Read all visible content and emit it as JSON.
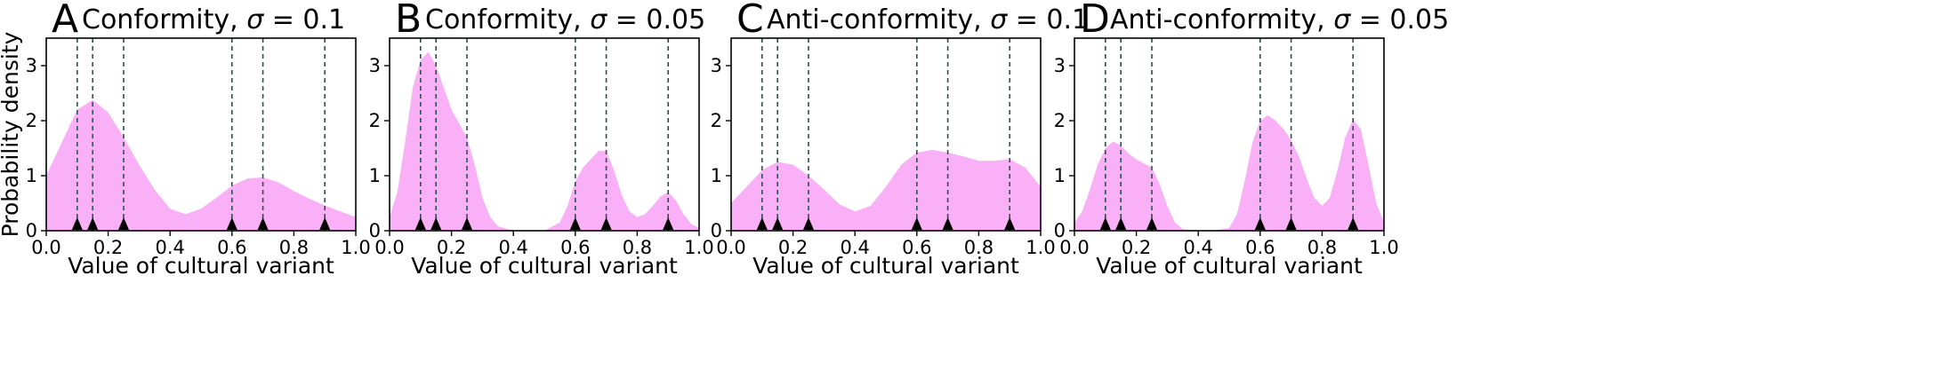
{
  "figure": {
    "ylabel": "Probability density",
    "xlabel": "Value of cultural variant"
  },
  "style": {
    "fill_color": "#f9b0f7",
    "line_color": "#2f4f4f",
    "marker_color": "#000000"
  },
  "chart_data": [
    {
      "type": "area",
      "letter": "A",
      "title_text": "Conformity, ",
      "sigma_text": "σ = 0.1",
      "xlabel": "Value of cultural variant",
      "ylabel": "Probability density",
      "xlim": [
        0,
        1
      ],
      "ylim": [
        0,
        3.5
      ],
      "xticks": [
        "0.0",
        "0.2",
        "0.4",
        "0.6",
        "0.8",
        "1.0"
      ],
      "yticks": [
        "0",
        "1",
        "2",
        "3"
      ],
      "markers": [
        0.1,
        0.15,
        0.25,
        0.6,
        0.7,
        0.9
      ],
      "x": [
        0.0,
        0.05,
        0.1,
        0.15,
        0.2,
        0.25,
        0.3,
        0.35,
        0.4,
        0.45,
        0.5,
        0.55,
        0.6,
        0.65,
        0.7,
        0.75,
        0.8,
        0.85,
        0.9,
        0.95,
        1.0
      ],
      "density": [
        1.0,
        1.6,
        2.2,
        2.38,
        2.15,
        1.7,
        1.2,
        0.75,
        0.4,
        0.3,
        0.4,
        0.6,
        0.82,
        0.95,
        0.97,
        0.88,
        0.72,
        0.58,
        0.46,
        0.35,
        0.25
      ]
    },
    {
      "type": "area",
      "letter": "B",
      "title_text": "Conformity, ",
      "sigma_text": "σ = 0.05",
      "xlabel": "Value of cultural variant",
      "ylabel": "",
      "xlim": [
        0,
        1
      ],
      "ylim": [
        0,
        3.5
      ],
      "xticks": [
        "0.0",
        "0.2",
        "0.4",
        "0.6",
        "0.8",
        "1.0"
      ],
      "yticks": [
        "0",
        "1",
        "2",
        "3"
      ],
      "markers": [
        0.1,
        0.15,
        0.25,
        0.6,
        0.7,
        0.9
      ],
      "x": [
        0.0,
        0.025,
        0.05,
        0.075,
        0.1,
        0.125,
        0.15,
        0.175,
        0.2,
        0.225,
        0.25,
        0.275,
        0.3,
        0.325,
        0.35,
        0.4,
        0.45,
        0.5,
        0.55,
        0.575,
        0.6,
        0.625,
        0.65,
        0.675,
        0.7,
        0.725,
        0.75,
        0.775,
        0.8,
        0.825,
        0.85,
        0.875,
        0.9,
        0.925,
        0.95,
        0.975,
        1.0
      ],
      "density": [
        0.25,
        0.7,
        1.6,
        2.6,
        3.1,
        3.25,
        3.0,
        2.6,
        2.2,
        1.95,
        1.7,
        1.2,
        0.6,
        0.25,
        0.08,
        0.0,
        0.0,
        0.0,
        0.15,
        0.45,
        0.9,
        1.15,
        1.3,
        1.45,
        1.45,
        1.1,
        0.65,
        0.35,
        0.25,
        0.3,
        0.45,
        0.62,
        0.7,
        0.55,
        0.3,
        0.12,
        0.05
      ]
    },
    {
      "type": "area",
      "letter": "C",
      "title_text": "Anti-conformity, ",
      "sigma_text": "σ = 0.1",
      "xlabel": "Value of cultural variant",
      "ylabel": "",
      "xlim": [
        0,
        1
      ],
      "ylim": [
        0,
        3.5
      ],
      "xticks": [
        "0.0",
        "0.2",
        "0.4",
        "0.6",
        "0.8",
        "1.0"
      ],
      "yticks": [
        "0",
        "1",
        "2",
        "3"
      ],
      "markers": [
        0.1,
        0.15,
        0.25,
        0.6,
        0.7,
        0.9
      ],
      "x": [
        0.0,
        0.05,
        0.1,
        0.15,
        0.2,
        0.25,
        0.3,
        0.35,
        0.4,
        0.45,
        0.5,
        0.55,
        0.6,
        0.65,
        0.7,
        0.75,
        0.8,
        0.85,
        0.9,
        0.95,
        1.0
      ],
      "density": [
        0.5,
        0.8,
        1.1,
        1.25,
        1.2,
        1.0,
        0.75,
        0.48,
        0.35,
        0.45,
        0.8,
        1.2,
        1.42,
        1.47,
        1.42,
        1.35,
        1.27,
        1.27,
        1.3,
        1.15,
        0.8
      ]
    },
    {
      "type": "area",
      "letter": "D",
      "title_text": "Anti-conformity, ",
      "sigma_text": "σ = 0.05",
      "xlabel": "Value of cultural variant",
      "ylabel": "",
      "xlim": [
        0,
        1
      ],
      "ylim": [
        0,
        3.5
      ],
      "xticks": [
        "0.0",
        "0.2",
        "0.4",
        "0.6",
        "0.8",
        "1.0"
      ],
      "yticks": [
        "0",
        "1",
        "2",
        "3"
      ],
      "markers": [
        0.1,
        0.15,
        0.25,
        0.6,
        0.7,
        0.9
      ],
      "x": [
        0.0,
        0.025,
        0.05,
        0.075,
        0.1,
        0.125,
        0.15,
        0.175,
        0.2,
        0.225,
        0.25,
        0.275,
        0.3,
        0.325,
        0.35,
        0.4,
        0.45,
        0.5,
        0.525,
        0.55,
        0.575,
        0.6,
        0.625,
        0.65,
        0.675,
        0.7,
        0.725,
        0.75,
        0.775,
        0.8,
        0.825,
        0.85,
        0.875,
        0.9,
        0.925,
        0.95,
        0.975,
        1.0
      ],
      "density": [
        0.15,
        0.35,
        0.75,
        1.2,
        1.5,
        1.62,
        1.55,
        1.4,
        1.3,
        1.22,
        1.15,
        0.85,
        0.45,
        0.15,
        0.03,
        0.0,
        0.0,
        0.05,
        0.3,
        0.9,
        1.6,
        2.0,
        2.1,
        2.0,
        1.85,
        1.65,
        1.35,
        0.95,
        0.6,
        0.45,
        0.6,
        1.1,
        1.7,
        2.02,
        1.85,
        1.2,
        0.5,
        0.15
      ]
    }
  ]
}
